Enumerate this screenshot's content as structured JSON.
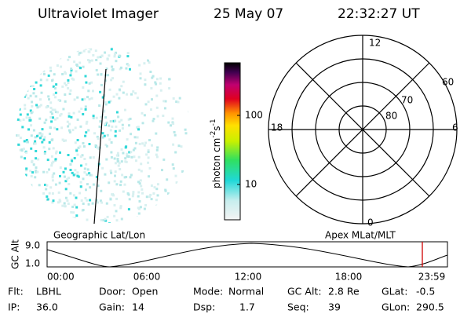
{
  "header": {
    "instrument": "Ultraviolet Imager",
    "date": "25 May 07",
    "time": "22:32:27 UT"
  },
  "colorbar": {
    "unit": {
      "base": "photon cm",
      "exp1": "-2",
      "mid": "s",
      "exp2": "-1"
    },
    "ticks": [
      "100",
      "10"
    ]
  },
  "polar": {
    "labels": {
      "top": "12",
      "bottom": "0",
      "left": "18",
      "right": "6"
    },
    "rings": [
      "60",
      "70",
      "80"
    ]
  },
  "orbit": {
    "left_title": "Geographic Lat/Lon",
    "right_title": "Apex MLat/MLT",
    "ylabel": "GC Alt",
    "yticks": [
      "9.0",
      "1.0"
    ],
    "xticks": [
      "00:00",
      "06:00",
      "12:00",
      "18:00",
      "23:59"
    ]
  },
  "info": {
    "rows": [
      [
        {
          "label": "Flt:",
          "value": "LBHL"
        },
        {
          "label": "Door:",
          "value": "Open"
        },
        {
          "label": "Mode:",
          "value": "Normal"
        },
        {
          "label": "GC Alt:",
          "value": "2.8 Re"
        },
        {
          "label": "GLat:",
          "value": "-0.5"
        }
      ],
      [
        {
          "label": "IP:",
          "value": "36.0"
        },
        {
          "label": "Gain:",
          "value": "14"
        },
        {
          "label": "Dsp:",
          "value": "1.7"
        },
        {
          "label": "Seq:",
          "value": "39"
        },
        {
          "label": "GLon:",
          "value": "290.5"
        }
      ]
    ]
  }
}
